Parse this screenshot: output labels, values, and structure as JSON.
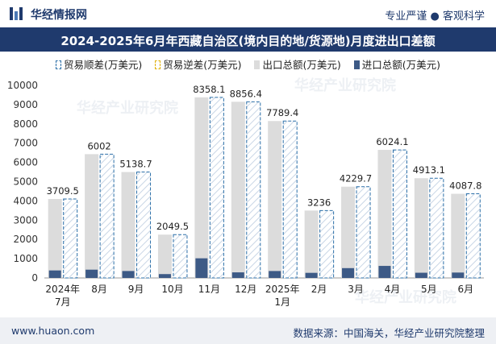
{
  "header": {
    "brand": "华经情报网",
    "slogan": "专业严谨 ● 客观科学"
  },
  "watermark": "华经产业研究院",
  "chart_data": {
    "type": "bar",
    "title": "2024-2025年6月年西藏自治区(境内目的地/货源地)月度进出口差额",
    "xlabel": "",
    "ylabel": "",
    "ylim": [
      0,
      10000
    ],
    "yticks": [
      0,
      1000,
      2000,
      3000,
      4000,
      5000,
      6000,
      7000,
      8000,
      9000,
      10000
    ],
    "categories": [
      "2024年\n7月",
      "8月",
      "9月",
      "10月",
      "11月",
      "12月",
      "2025年\n1月",
      "2月",
      "3月",
      "4月",
      "5月",
      "6月"
    ],
    "series": [
      {
        "name": "贸易顺差(万美元)",
        "values": [
          3709.5,
          6002,
          5138.7,
          2049.5,
          8358.1,
          8856.4,
          7789.4,
          3236,
          4229.7,
          6024.1,
          4913.1,
          4087.8
        ]
      },
      {
        "name": "贸易逆差(万美元)",
        "values": [
          0,
          0,
          0,
          0,
          0,
          0,
          0,
          0,
          0,
          0,
          0,
          0
        ]
      },
      {
        "name": "出口总额(万美元)",
        "values": [
          4100,
          6430,
          5500,
          2250,
          9380,
          9150,
          8150,
          3500,
          4740,
          6650,
          5180,
          4370
        ]
      },
      {
        "name": "进口总额(万美元)",
        "values": [
          390,
          430,
          360,
          200,
          1020,
          290,
          360,
          265,
          510,
          625,
          270,
          280
        ]
      }
    ],
    "data_labels": [
      "3709.5",
      "6002",
      "5138.7",
      "2049.5",
      "8358.1",
      "8856.4",
      "7789.4",
      "3236",
      "4229.7",
      "6024.1",
      "4913.1",
      "4087.8"
    ]
  },
  "footer": {
    "website": "www.huaon.com",
    "source": "数据来源：中国海关，华经产业研究院整理"
  },
  "colors": {
    "navy": "#1f3a6d",
    "export": "#dcdcdc",
    "import": "#3d5a86",
    "surplus_border": "#2b6fa8",
    "deficit_border": "#e0b000"
  }
}
